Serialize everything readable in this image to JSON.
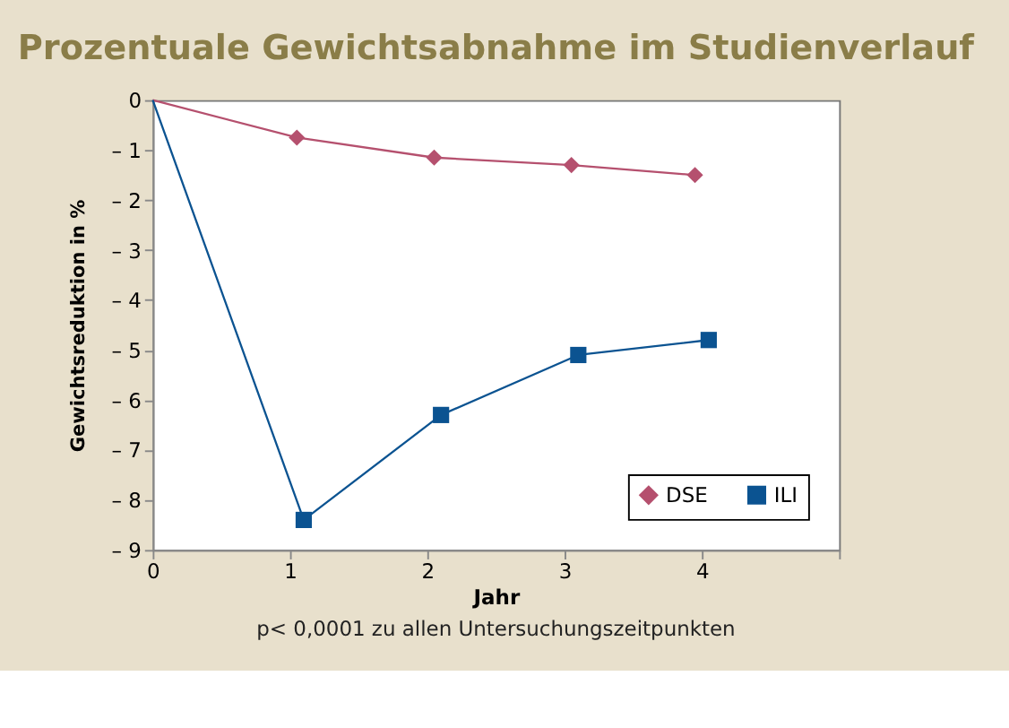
{
  "chart_data": {
    "type": "line",
    "title": "Prozentuale Gewichtsabnahme im Studienverlauf",
    "xlabel": "Jahr",
    "ylabel": "Gewichtsreduktion in %",
    "annotations": [
      "p< 0,0001 zu allen Untersuchungszeitpunkten"
    ],
    "series": [
      {
        "name": "DSE",
        "color": "#b5506e",
        "marker": "diamond",
        "x": [
          0,
          1.05,
          2.05,
          3.05,
          3.95
        ],
        "values": [
          0,
          -0.75,
          -1.15,
          -1.3,
          -1.5
        ]
      },
      {
        "name": "ILI",
        "color": "#0b5391",
        "marker": "square",
        "x": [
          0,
          1.1,
          2.1,
          3.1,
          4.05
        ],
        "values": [
          0,
          -8.4,
          -6.3,
          -5.1,
          -4.8
        ]
      }
    ],
    "xlim": [
      0,
      5
    ],
    "xticks": [
      0,
      1,
      2,
      3,
      4,
      {
        "value": 5,
        "label": null
      }
    ],
    "ylim": [
      -9,
      0
    ],
    "yticks": [
      0,
      {
        "value": -1,
        "label": "– 1"
      },
      {
        "value": -2,
        "label": "– 2"
      },
      {
        "value": -3,
        "label": "– 3"
      },
      {
        "value": -4,
        "label": "– 4"
      },
      {
        "value": -5,
        "label": "– 5"
      },
      {
        "value": -6,
        "label": "– 6"
      },
      {
        "value": -7,
        "label": "– 7"
      },
      {
        "value": -8,
        "label": "– 8"
      },
      {
        "value": -9,
        "label": "– 9"
      }
    ],
    "grid": false,
    "legend": "bottom right",
    "line_style": "solid"
  }
}
